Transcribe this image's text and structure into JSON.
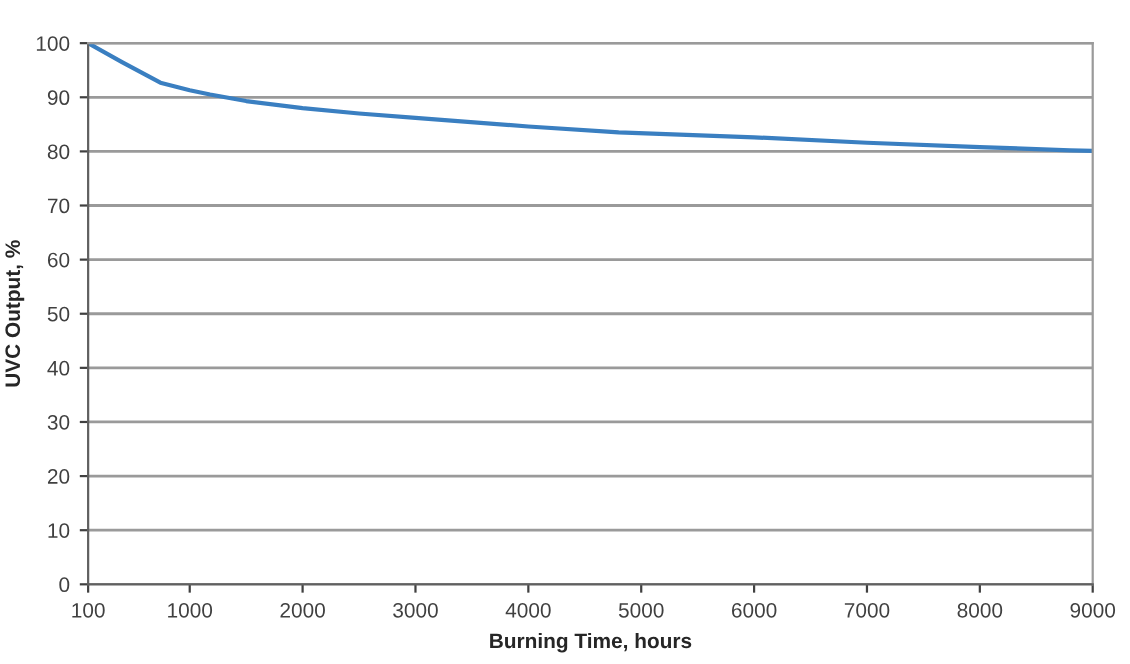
{
  "chart_data": {
    "type": "line",
    "xlabel": "Burning Time, hours",
    "ylabel": "UVC Output, %",
    "x": [
      100,
      400,
      740,
      1000,
      1180,
      1500,
      2000,
      2500,
      3000,
      4000,
      4800,
      6000,
      7000,
      8000,
      8800,
      9000
    ],
    "series": [
      {
        "color": "#3a7fc1",
        "values": [
          100,
          96.5,
          92.7,
          91.3,
          90.5,
          89.3,
          88,
          87,
          86.2,
          84.6,
          83.5,
          82.6,
          81.6,
          80.8,
          80.2,
          80.1
        ]
      }
    ],
    "xlim": [
      100,
      9000
    ],
    "xticks": [
      100,
      1000,
      2000,
      3000,
      4000,
      5000,
      6000,
      7000,
      8000,
      9000
    ],
    "ylim": [
      0,
      100
    ],
    "yticks": [
      0,
      10,
      20,
      30,
      40,
      50,
      60,
      70,
      80,
      90,
      100
    ],
    "grid": "y",
    "marker": "none",
    "line_style": "solid"
  }
}
